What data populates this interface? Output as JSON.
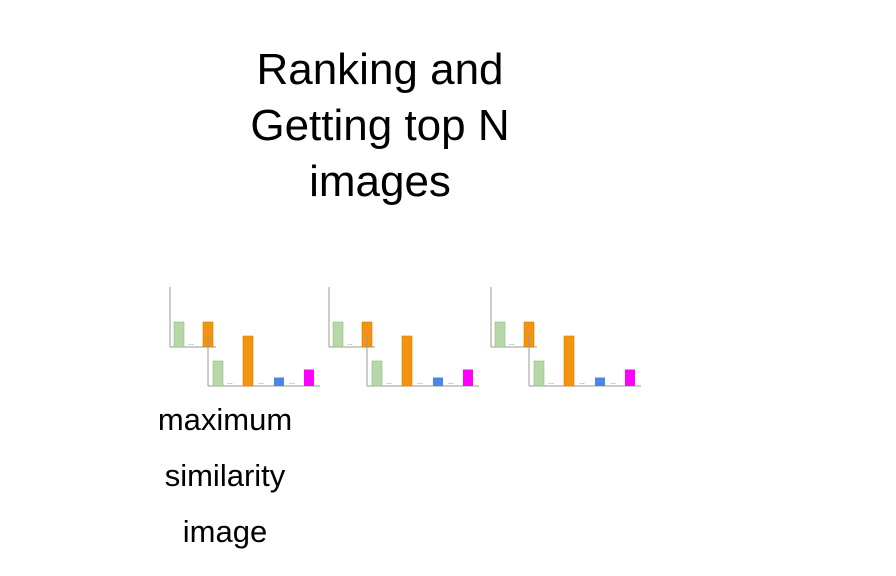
{
  "title_lines": [
    "Ranking and",
    "Getting top N",
    "images"
  ],
  "caption_lines": [
    "maximum",
    "similarity",
    "image"
  ],
  "colors": {
    "green": "#b6d7a8",
    "green_stroke": "#8fbc7a",
    "orange": "#f4930f",
    "orange_stroke": "#d97d00",
    "blue": "#4a86e8",
    "magenta": "#ff00ff",
    "axis": "#999999",
    "dots": "#555555"
  },
  "histogram_groups": [
    {
      "back": {
        "bars": [
          {
            "color": "green",
            "level": 0.5
          },
          {
            "color": "orange",
            "level": 0.5
          }
        ]
      },
      "front": {
        "bars": [
          {
            "color": "green",
            "level": 0.5
          },
          {
            "color": "orange",
            "level": 1.0
          },
          {
            "color": "blue",
            "level": 0.17
          },
          {
            "color": "magenta",
            "level": 0.33
          }
        ]
      }
    },
    {
      "back": {
        "bars": [
          {
            "color": "green",
            "level": 0.5
          },
          {
            "color": "orange",
            "level": 0.5
          }
        ]
      },
      "front": {
        "bars": [
          {
            "color": "green",
            "level": 0.5
          },
          {
            "color": "orange",
            "level": 1.0
          },
          {
            "color": "blue",
            "level": 0.17
          },
          {
            "color": "magenta",
            "level": 0.33
          }
        ]
      }
    },
    {
      "back": {
        "bars": [
          {
            "color": "green",
            "level": 0.5
          },
          {
            "color": "orange",
            "level": 0.5
          }
        ]
      },
      "front": {
        "bars": [
          {
            "color": "green",
            "level": 0.5
          },
          {
            "color": "orange",
            "level": 1.0
          },
          {
            "color": "blue",
            "level": 0.17
          },
          {
            "color": "magenta",
            "level": 0.33
          }
        ]
      }
    }
  ],
  "ellipsis": "..."
}
